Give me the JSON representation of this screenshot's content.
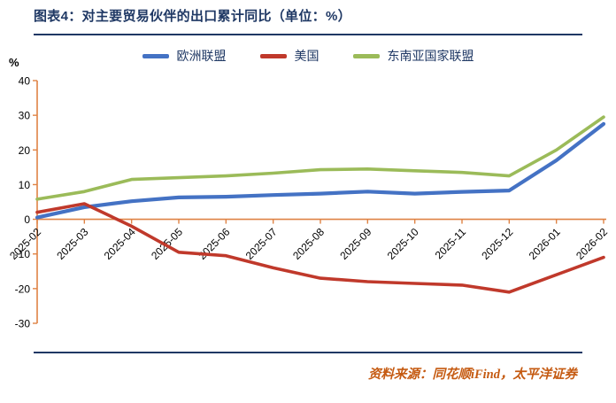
{
  "header": {
    "title": "图表4：对主要贸易伙伴的出口累计同比（单位：%）"
  },
  "footer": {
    "source": "资料来源：同花顺iFind，太平洋证券"
  },
  "colors": {
    "title_navy": "#1F3864",
    "divider_navy": "#1F3864",
    "axis_orange": "#DF8244",
    "source_orange": "#C55A11",
    "series_blue": "#4472C4",
    "series_red": "#C0392B",
    "series_green": "#9BBB59"
  },
  "chart_data": {
    "type": "line",
    "title": "图表4：对主要贸易伙伴的出口累计同比（单位：%）",
    "ylabel": "%",
    "xlabel": "",
    "ylim": [
      -30,
      40
    ],
    "yticks": [
      40,
      30,
      20,
      10,
      0,
      -10,
      -20,
      -30
    ],
    "grid": false,
    "legend_position": "top",
    "categories": [
      "2025-02",
      "2025-03",
      "2025-04",
      "2025-05",
      "2025-06",
      "2025-07",
      "2025-08",
      "2025-09",
      "2025-10",
      "2025-11",
      "2025-12",
      "2026-01",
      "2026-02"
    ],
    "series": [
      {
        "name": "欧洲联盟",
        "color": "#4472C4",
        "values": [
          0.5,
          3.5,
          5.2,
          6.3,
          6.5,
          7.0,
          7.4,
          8.0,
          7.4,
          7.9,
          8.3,
          17.0,
          27.5
        ]
      },
      {
        "name": "美国",
        "color": "#C0392B",
        "values": [
          2.0,
          4.5,
          -2.0,
          -9.5,
          -10.5,
          -14.0,
          -17.0,
          -18.0,
          -18.5,
          -19.0,
          -21.0,
          -16.0,
          -11.0
        ]
      },
      {
        "name": "东南亚国家联盟",
        "color": "#9BBB59",
        "values": [
          5.8,
          8.0,
          11.5,
          12.0,
          12.5,
          13.3,
          14.3,
          14.5,
          14.0,
          13.5,
          12.5,
          20.0,
          29.5
        ]
      }
    ]
  }
}
